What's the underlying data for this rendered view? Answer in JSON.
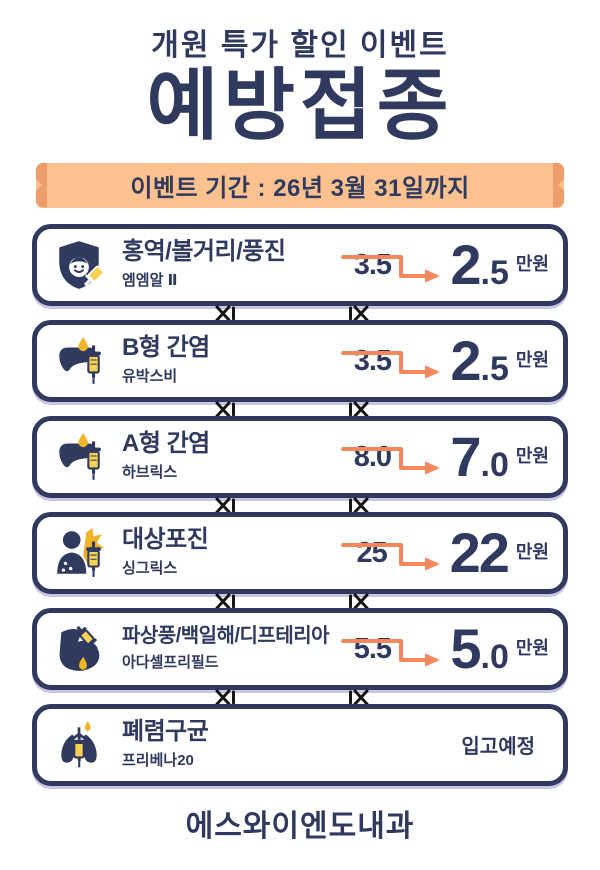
{
  "header": {
    "eyebrow": "개원 특가 할인 이벤트",
    "title": "예방접종"
  },
  "banner": {
    "text": "이벤트 기간 : 26년 3월 31일까지"
  },
  "vaccines": [
    {
      "name": "홍역/볼거리/풍진",
      "brand": "엠엠알 Ⅱ",
      "old_price": "3.5",
      "price_main": "2",
      "price_sub": ".5",
      "unit": "만원",
      "icon": "shield-child-syringe"
    },
    {
      "name": "B형 간염",
      "brand": "유박스비",
      "old_price": "3.5",
      "price_main": "2",
      "price_sub": ".5",
      "unit": "만원",
      "icon": "liver-syringe"
    },
    {
      "name": "A형 간염",
      "brand": "하브릭스",
      "old_price": "8.0",
      "price_main": "7",
      "price_sub": ".0",
      "unit": "만원",
      "icon": "liver-syringe"
    },
    {
      "name": "대상포진",
      "brand": "싱그릭스",
      "old_price": "25",
      "price_main": "22",
      "price_sub": "",
      "unit": "만원",
      "icon": "person-rash-syringe"
    },
    {
      "name": "파상풍/백일해/디프테리아",
      "brand": "아다셀프리필드",
      "old_price": "5.5",
      "price_main": "5",
      "price_sub": ".0",
      "unit": "만원",
      "icon": "arm-syringe"
    },
    {
      "name": "폐렴구균",
      "brand": "프리베나20",
      "status": "입고예정",
      "icon": "lungs-syringe"
    }
  ],
  "footer": {
    "clinic": "에스와이엔도내과"
  },
  "colors": {
    "navy": "#2f3a5e",
    "accent_orange": "#f4875b",
    "banner_bg": "#fbc28f",
    "banner_edge": "#ee9d6b",
    "icon_yellow": "#f0b429",
    "stitch_black": "#151515"
  }
}
